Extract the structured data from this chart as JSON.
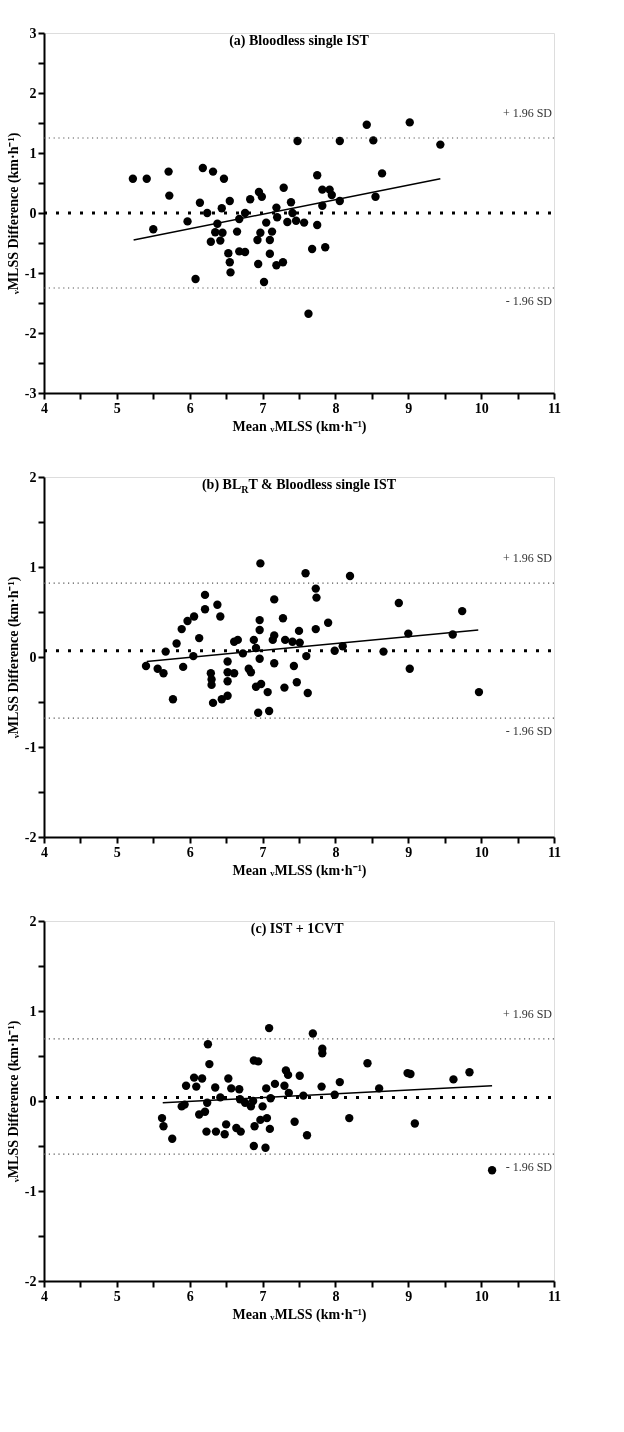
{
  "chart_data": [
    {
      "type": "scatter",
      "title": "(a) Bloodless single IST",
      "xlabel": "Mean ᵥMLSS (km·h⁻¹)",
      "ylabel": "ᵥMLSS Difference (km·h⁻¹)",
      "xlim": [
        4,
        11
      ],
      "xticks": [
        4,
        {
          "value": 4.5,
          "label": null
        },
        5,
        {
          "value": 5.5,
          "label": null
        },
        6,
        {
          "value": 6.5,
          "label": null
        },
        7,
        {
          "value": 7.5,
          "label": null
        },
        8,
        {
          "value": 8.5,
          "label": null
        },
        9,
        {
          "value": 9.5,
          "label": null
        },
        10,
        {
          "value": 10.5,
          "label": null
        },
        11
      ],
      "ylim": [
        -3,
        3
      ],
      "yticks": [
        -3,
        {
          "value": -2.5,
          "label": null
        },
        -2,
        {
          "value": -1.5,
          "label": null
        },
        -1,
        {
          "value": -0.5,
          "label": null
        },
        0,
        {
          "value": 0.5,
          "label": null
        },
        1,
        {
          "value": 1.5,
          "label": null
        },
        2,
        {
          "value": 2.5,
          "label": null
        },
        3
      ],
      "grid": false,
      "series": [
        {
          "type": "scatter",
          "marker": "circle",
          "color": "#000000",
          "x": [
            5.22,
            5.41,
            5.71,
            5.72,
            5.5,
            5.97,
            6.08,
            6.18,
            6.32,
            6.47,
            6.14,
            6.24,
            6.44,
            6.55,
            6.38,
            6.35,
            6.45,
            6.29,
            6.42,
            6.53,
            6.55,
            6.56,
            6.65,
            6.68,
            6.76,
            6.68,
            6.76,
            6.83,
            6.95,
            6.99,
            6.93,
            6.97,
            6.94,
            7.02,
            7.05,
            7.13,
            7.1,
            7.1,
            7.19,
            7.2,
            7.19,
            7.28,
            7.29,
            7.39,
            7.41,
            7.34,
            7.46,
            7.57,
            7.48,
            7.63,
            7.75,
            7.75,
            7.68,
            7.86,
            7.82,
            7.82,
            7.92,
            7.95,
            8.06,
            8.06,
            8.43,
            8.52,
            8.55,
            8.64,
            9.02,
            9.44
          ],
          "values": [
            0.57,
            0.57,
            0.69,
            0.29,
            -0.27,
            -0.14,
            -1.1,
            0.75,
            0.69,
            0.57,
            0.17,
            0.0,
            0.08,
            0.2,
            -0.18,
            -0.32,
            -0.33,
            -0.48,
            -0.46,
            -0.67,
            -0.82,
            -0.99,
            -0.31,
            -0.1,
            0.0,
            -0.64,
            -0.65,
            0.23,
            0.35,
            0.27,
            -0.45,
            -0.33,
            -0.85,
            -1.15,
            -0.16,
            -0.31,
            -0.45,
            -0.68,
            0.09,
            -0.07,
            -0.87,
            -0.82,
            0.42,
            0.18,
            0.0,
            -0.15,
            -0.13,
            -0.16,
            1.2,
            -1.68,
            0.63,
            -0.2,
            -0.6,
            -0.57,
            0.39,
            0.12,
            0.39,
            0.3,
            0.2,
            1.2,
            1.47,
            1.21,
            0.27,
            0.66,
            1.51,
            1.14
          ]
        },
        {
          "type": "line",
          "marker": "none",
          "color": "#000000",
          "line_style": "solid",
          "x": [
            5.23,
            9.44
          ],
          "values": [
            -0.45,
            0.57
          ]
        }
      ],
      "ref_lines": [
        {
          "axis": "y",
          "value": 0,
          "color": "#000000",
          "line_style": "dotted"
        },
        {
          "axis": "y",
          "value": 1.25,
          "label": "+ 1.96 SD",
          "color": "#555555",
          "line_style": "dotted"
        },
        {
          "axis": "y",
          "value": -1.25,
          "label": "- 1.96 SD",
          "color": "#555555",
          "line_style": "dotted"
        }
      ]
    },
    {
      "type": "scatter",
      "title": "(b) BL$_{R}$T & Bloodless single IST",
      "xlabel": "Mean ᵥMLSS (km·h⁻¹)",
      "ylabel": "ᵥMLSS Difference (km·h⁻¹)",
      "xlim": [
        4,
        11
      ],
      "xticks": [
        4,
        {
          "value": 4.5,
          "label": null
        },
        5,
        {
          "value": 5.5,
          "label": null
        },
        6,
        {
          "value": 6.5,
          "label": null
        },
        7,
        {
          "value": 7.5,
          "label": null
        },
        8,
        {
          "value": 8.5,
          "label": null
        },
        9,
        {
          "value": 9.5,
          "label": null
        },
        10,
        {
          "value": 10.5,
          "label": null
        },
        11
      ],
      "ylim": [
        -2,
        2
      ],
      "yticks": [
        -2,
        {
          "value": -1.5,
          "label": null
        },
        -1,
        {
          "value": -0.5,
          "label": null
        },
        0,
        {
          "value": 0.5,
          "label": null
        },
        1,
        {
          "value": 1.5,
          "label": null
        },
        2
      ],
      "grid": false,
      "series": [
        {
          "type": "scatter",
          "marker": "circle",
          "color": "#000000",
          "x": [
            5.4,
            5.56,
            5.64,
            5.67,
            5.77,
            5.82,
            5.89,
            5.91,
            5.97,
            6.06,
            6.05,
            6.13,
            6.21,
            6.21,
            6.38,
            6.42,
            6.29,
            6.3,
            6.3,
            6.32,
            6.44,
            6.52,
            6.52,
            6.52,
            6.52,
            6.61,
            6.61,
            6.66,
            6.73,
            6.81,
            6.84,
            6.88,
            6.91,
            6.96,
            6.96,
            6.96,
            6.97,
            6.91,
            6.98,
            7.07,
            6.94,
            7.09,
            7.16,
            7.16,
            7.14,
            7.16,
            7.28,
            7.31,
            7.3,
            7.41,
            7.5,
            7.51,
            7.43,
            7.47,
            7.59,
            7.6,
            7.62,
            7.73,
            7.74,
            7.73,
            7.9,
            7.99,
            8.1,
            8.2,
            8.66,
            8.87,
            9.0,
            9.02,
            9.61,
            9.74,
            9.97
          ],
          "values": [
            -0.1,
            -0.13,
            -0.18,
            0.06,
            -0.47,
            0.15,
            0.31,
            -0.11,
            0.4,
            0.45,
            0.01,
            0.21,
            0.69,
            0.53,
            0.58,
            0.45,
            -0.18,
            -0.25,
            -0.31,
            -0.51,
            -0.47,
            -0.43,
            -0.05,
            -0.17,
            -0.27,
            -0.18,
            0.17,
            0.19,
            0.04,
            -0.13,
            -0.17,
            0.19,
            0.1,
            0.41,
            0.3,
            -0.02,
            1.04,
            -0.33,
            -0.3,
            -0.39,
            -0.62,
            -0.6,
            0.64,
            0.24,
            0.19,
            -0.07,
            0.43,
            0.19,
            -0.34,
            0.17,
            0.29,
            0.16,
            -0.1,
            -0.28,
            0.93,
            0.01,
            -0.4,
            0.76,
            0.66,
            0.31,
            0.38,
            0.07,
            0.12,
            0.9,
            0.06,
            0.6,
            0.26,
            -0.13,
            0.25,
            0.51,
            -0.39
          ]
        },
        {
          "type": "line",
          "marker": "none",
          "color": "#000000",
          "line_style": "solid",
          "x": [
            5.41,
            9.96
          ],
          "values": [
            -0.05,
            0.3
          ]
        }
      ],
      "ref_lines": [
        {
          "axis": "y",
          "value": 0.07,
          "color": "#000000",
          "line_style": "dotted"
        },
        {
          "axis": "y",
          "value": 0.82,
          "label": "+ 1.96 SD",
          "color": "#555555",
          "line_style": "dotted"
        },
        {
          "axis": "y",
          "value": -0.68,
          "label": "- 1.96 SD",
          "color": "#555555",
          "line_style": "dotted"
        }
      ]
    },
    {
      "type": "scatter",
      "title": "(c)  IST + 1CVT",
      "xlabel": "Mean ᵥMLSS (km·h⁻¹)",
      "ylabel": "ᵥMLSS Difference (km·h⁻¹)",
      "xlim": [
        4,
        11
      ],
      "xticks": [
        4,
        {
          "value": 4.5,
          "label": null
        },
        5,
        {
          "value": 5.5,
          "label": null
        },
        6,
        {
          "value": 6.5,
          "label": null
        },
        7,
        {
          "value": 7.5,
          "label": null
        },
        8,
        {
          "value": 8.5,
          "label": null
        },
        9,
        {
          "value": 9.5,
          "label": null
        },
        10,
        {
          "value": 10.5,
          "label": null
        },
        11
      ],
      "ylim": [
        -2,
        2
      ],
      "yticks": [
        -2,
        {
          "value": -1.5,
          "label": null
        },
        -1,
        {
          "value": -0.5,
          "label": null
        },
        0,
        {
          "value": 0.5,
          "label": null
        },
        1,
        {
          "value": 1.5,
          "label": null
        },
        2
      ],
      "grid": false,
      "series": [
        {
          "type": "scatter",
          "marker": "circle",
          "color": "#000000",
          "x": [
            5.62,
            5.64,
            5.76,
            5.89,
            5.93,
            5.95,
            6.06,
            6.09,
            6.17,
            6.13,
            6.21,
            6.24,
            6.25,
            6.27,
            6.23,
            6.36,
            6.35,
            6.42,
            6.5,
            6.48,
            6.53,
            6.57,
            6.64,
            6.7,
            6.68,
            6.69,
            6.76,
            6.84,
            6.87,
            6.88,
            6.94,
            6.89,
            6.88,
            7.0,
            6.97,
            7.06,
            7.04,
            7.1,
            7.05,
            7.11,
            7.09,
            7.17,
            7.3,
            7.32,
            7.35,
            7.36,
            7.44,
            7.51,
            7.56,
            7.61,
            7.69,
            7.81,
            7.82,
            7.82,
            7.99,
            8.06,
            8.19,
            8.44,
            8.6,
            8.99,
            9.03,
            9.09,
            9.62,
            9.84,
            10.15
          ],
          "values": [
            -0.19,
            -0.28,
            -0.42,
            -0.06,
            -0.04,
            0.17,
            0.26,
            0.16,
            0.25,
            -0.15,
            -0.12,
            -0.02,
            0.63,
            0.41,
            -0.34,
            -0.34,
            0.15,
            0.04,
            -0.26,
            -0.37,
            0.25,
            0.14,
            -0.3,
            -0.34,
            0.13,
            0.02,
            -0.02,
            -0.06,
            0.0,
            0.45,
            0.44,
            -0.28,
            -0.5,
            -0.06,
            -0.21,
            -0.19,
            -0.52,
            -0.31,
            0.14,
            0.03,
            0.81,
            0.19,
            0.17,
            0.34,
            0.29,
            0.09,
            -0.23,
            0.28,
            0.06,
            -0.38,
            0.75,
            0.16,
            0.58,
            0.53,
            0.07,
            0.21,
            -0.19,
            0.42,
            0.14,
            0.31,
            0.3,
            -0.25,
            0.24,
            0.32,
            -0.77
          ]
        },
        {
          "type": "line",
          "marker": "none",
          "color": "#000000",
          "line_style": "solid",
          "x": [
            5.63,
            10.15
          ],
          "values": [
            -0.02,
            0.17
          ]
        }
      ],
      "ref_lines": [
        {
          "axis": "y",
          "value": 0.04,
          "color": "#000000",
          "line_style": "dotted"
        },
        {
          "axis": "y",
          "value": 0.69,
          "label": "+ 1.96 SD",
          "color": "#555555",
          "line_style": "dotted"
        },
        {
          "axis": "y",
          "value": -0.59,
          "label": "- 1.96 SD",
          "color": "#555555",
          "line_style": "dotted"
        }
      ]
    }
  ]
}
